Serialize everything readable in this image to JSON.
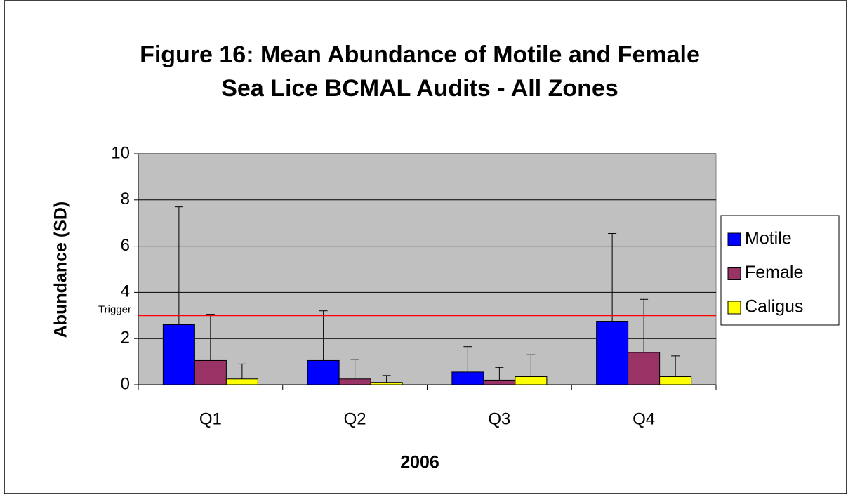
{
  "chart_data": {
    "type": "bar",
    "title": [
      "Figure 16: Mean Abundance of Motile and Female",
      "Sea Lice BCMAL Audits - All Zones"
    ],
    "xlabel": "2006",
    "ylabel": "Abundance (SD)",
    "categories": [
      "Q1",
      "Q2",
      "Q3",
      "Q4"
    ],
    "series": [
      {
        "name": "Motile",
        "color": "#0000ff",
        "values": [
          2.6,
          1.05,
          0.55,
          2.75
        ],
        "errors": [
          5.1,
          2.15,
          1.1,
          3.8
        ]
      },
      {
        "name": "Female",
        "color": "#993366",
        "values": [
          1.05,
          0.25,
          0.2,
          1.4
        ],
        "errors": [
          2.0,
          0.85,
          0.55,
          2.3
        ]
      },
      {
        "name": "Caligus",
        "color": "#ffff00",
        "values": [
          0.25,
          0.1,
          0.35,
          0.35
        ],
        "errors": [
          0.65,
          0.3,
          0.95,
          0.9
        ]
      }
    ],
    "trigger": {
      "label": "Trigger",
      "value": 3,
      "color": "#ff0000"
    },
    "ylim": [
      0,
      10
    ],
    "yticks": [
      0,
      2,
      4,
      6,
      8,
      10
    ],
    "grid": true,
    "legend": "right"
  }
}
